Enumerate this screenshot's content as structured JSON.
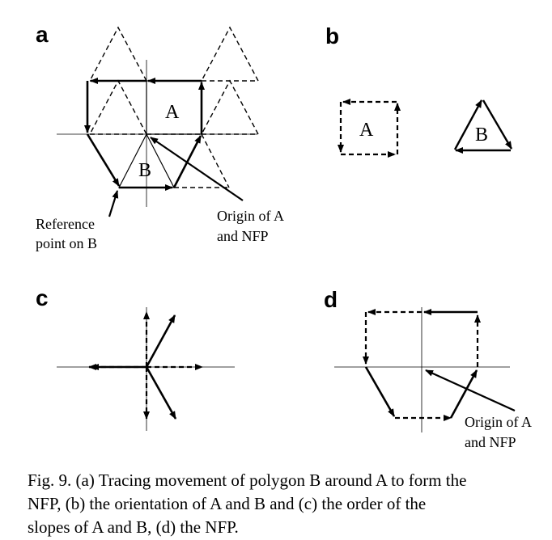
{
  "panels": {
    "a": {
      "letter": "a",
      "polygon_a": "A",
      "polygon_b": "B",
      "ref_label_1": "Reference",
      "ref_label_2": "point on B",
      "origin_label_1": "Origin of A",
      "origin_label_2": "and NFP"
    },
    "b": {
      "letter": "b",
      "polygon_a": "A",
      "polygon_b": "B"
    },
    "c": {
      "letter": "c"
    },
    "d": {
      "letter": "d",
      "origin_label_1": "Origin of A",
      "origin_label_2": "and NFP"
    }
  },
  "caption": {
    "line1": "Fig. 9.  (a) Tracing movement of polygon B around A to form the",
    "line2": "NFP, (b) the orientation of A and B and (c) the order of the",
    "line3": "slopes of A and B, (d) the NFP."
  }
}
